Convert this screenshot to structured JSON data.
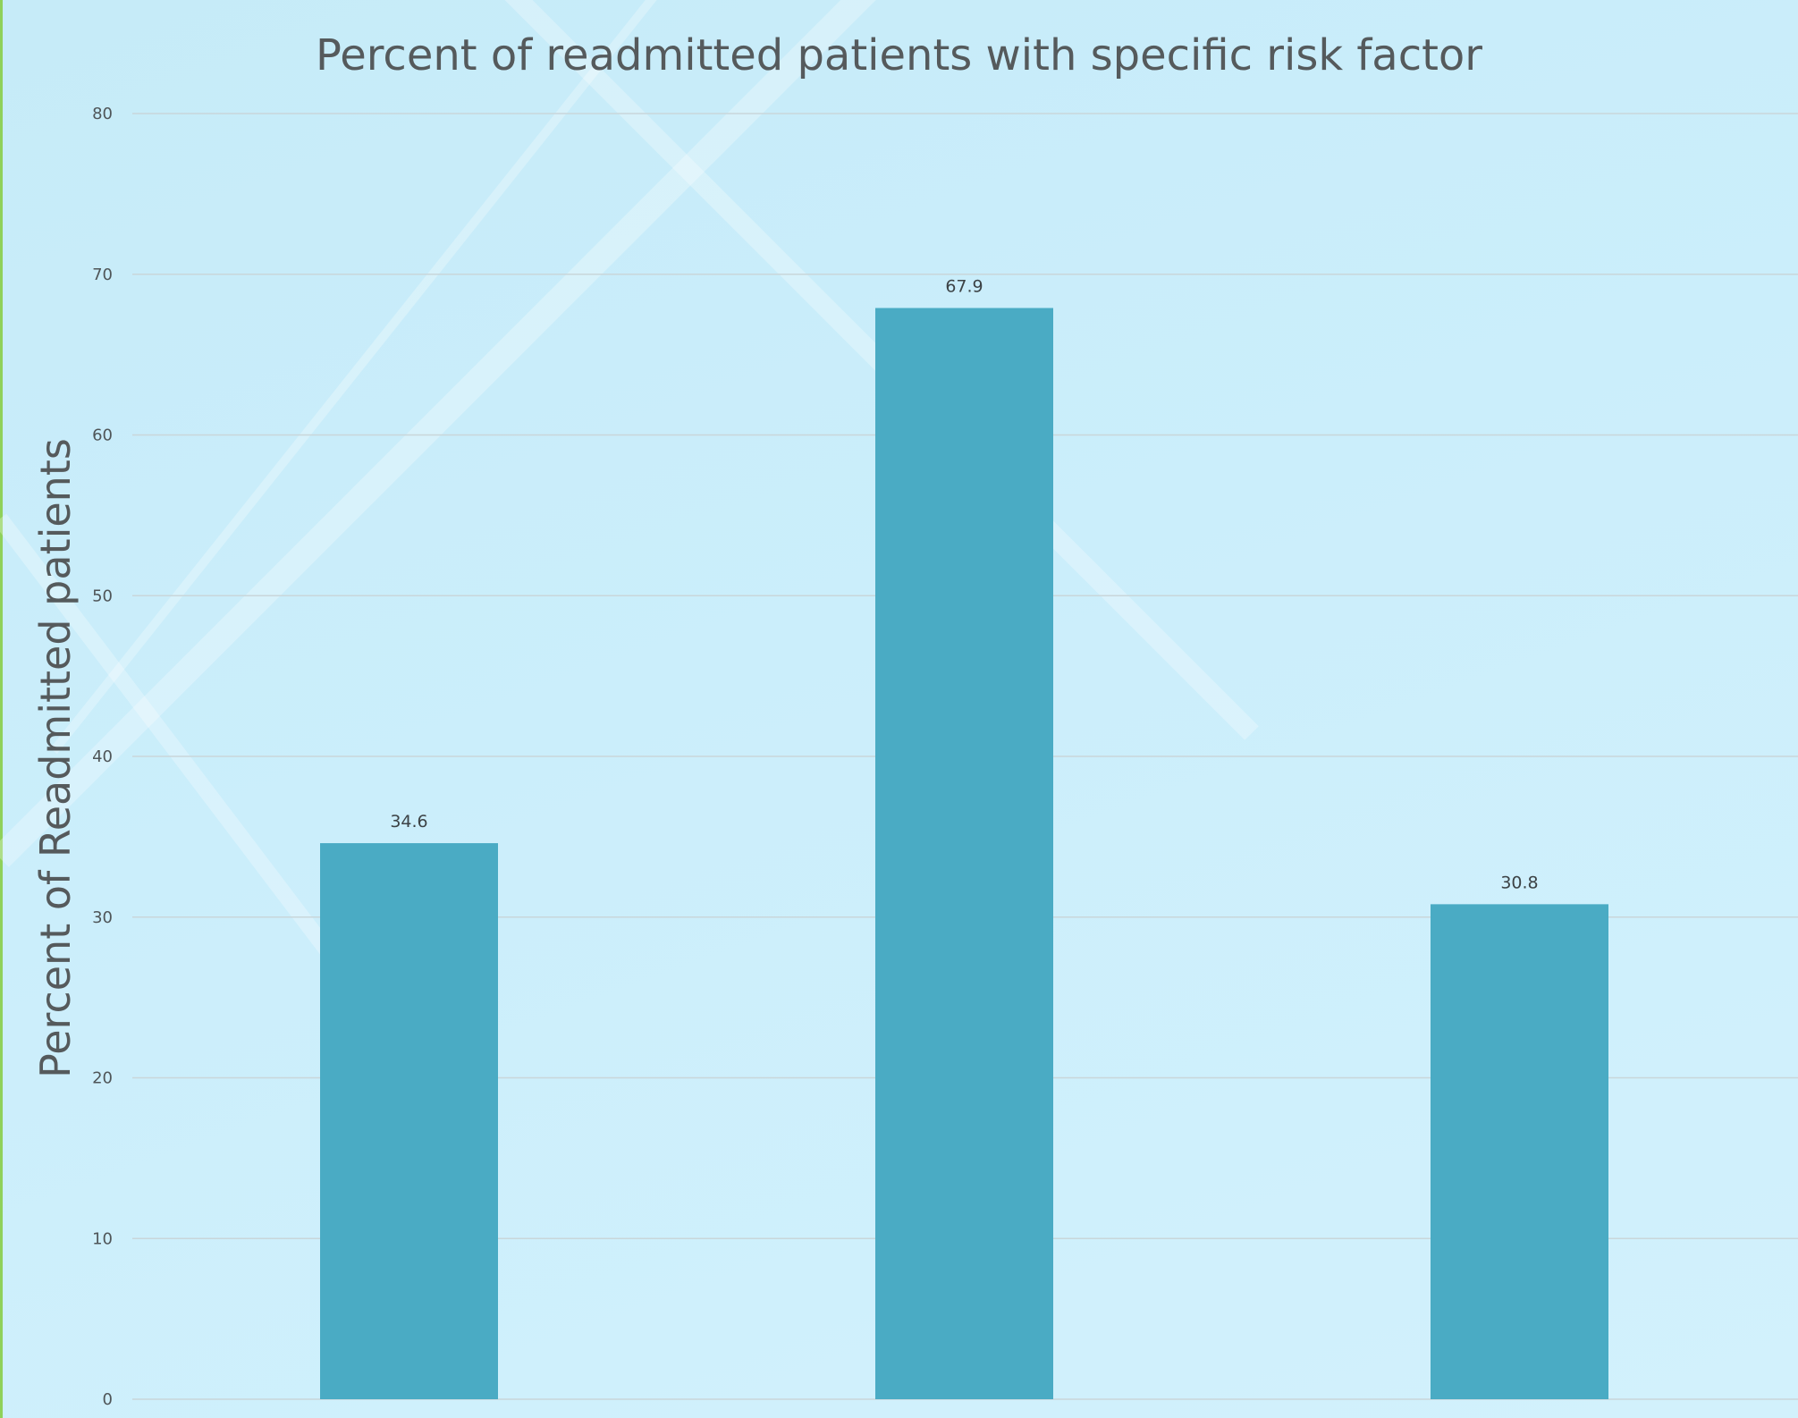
{
  "chart_data": {
    "type": "bar",
    "title": "Percent of readmitted patients with specific risk factor",
    "xlabel": "",
    "ylabel": "Percent of Readmitted patients",
    "categories": [
      "",
      "",
      ""
    ],
    "values": [
      34.6,
      67.9,
      30.8
    ],
    "data_labels": [
      "34.6",
      "67.9",
      "30.8"
    ],
    "ylim": [
      0,
      80
    ],
    "yticks": [
      0,
      10,
      20,
      30,
      40,
      50,
      60,
      70,
      80
    ],
    "grid": true,
    "legend": "none",
    "colors": {
      "bar": "#4aabc4",
      "gridline": "#c9d6da",
      "text": "#555a5c",
      "left_edge": "#8fd15a"
    }
  }
}
